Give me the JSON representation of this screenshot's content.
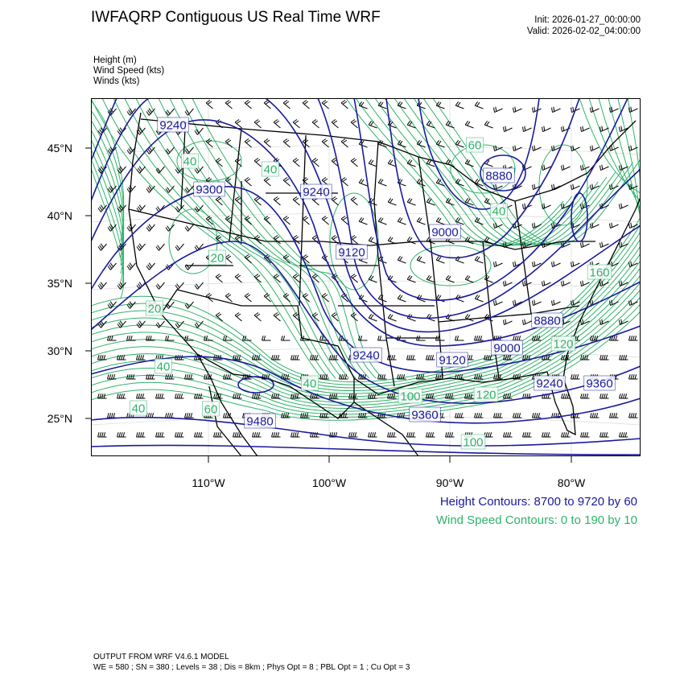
{
  "header": {
    "title": "IWFAQRP Contiguous US Real Time WRF",
    "init": "Init: 2026-01-27_00:00:00",
    "valid": "Valid: 2026-02-02_04:00:00"
  },
  "fields": [
    "Height   (m)",
    "Wind Speed   (kts)",
    "Winds   (kts)"
  ],
  "axes": {
    "lat_labels": [
      "45°N",
      "40°N",
      "35°N",
      "30°N",
      "25°N"
    ],
    "lon_labels": [
      "110°W",
      "100°W",
      "90°W",
      "80°W"
    ]
  },
  "map": {
    "height_contour_color": "#1a1a9c",
    "wind_contour_color": "#2fb36a",
    "height_labels": [
      "9240",
      "9300",
      "9240",
      "9120",
      "9000",
      "8880",
      "8880",
      "9000",
      "9120",
      "9240",
      "9240",
      "9360",
      "9360",
      "9480"
    ],
    "wind_labels": [
      "20",
      "40",
      "40",
      "60",
      "40",
      "100",
      "120",
      "100",
      "120",
      "160",
      "40",
      "40",
      "40",
      "60",
      "20"
    ]
  },
  "legend": {
    "height": "Height Contours: 8700 to 9720 by 60",
    "wind": "Wind Speed Contours: 0 to 190 by 10"
  },
  "footer": {
    "line1": "OUTPUT FROM WRF V4.6.1 MODEL",
    "line2": "WE = 580 ; SN = 380 ; Levels = 38 ; Dis = 8km ; Phys Opt = 8 ; PBL Opt = 1 ; Cu Opt = 3"
  }
}
